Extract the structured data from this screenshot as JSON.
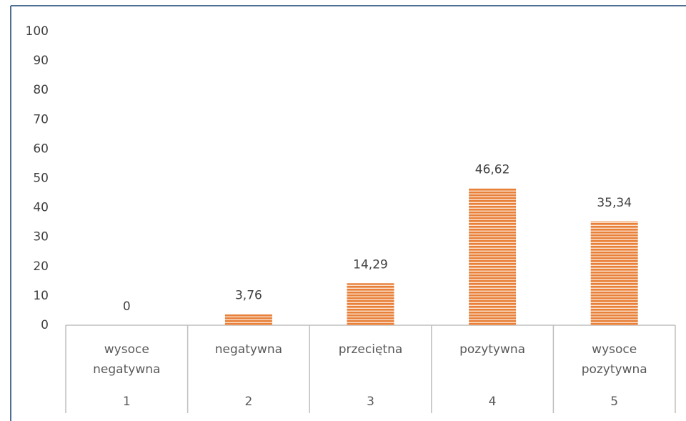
{
  "chart_data": {
    "type": "bar",
    "categories": [
      "wysoce negatywna",
      "negatywna",
      "przeciętna",
      "pozytywna",
      "wysoce pozytywna"
    ],
    "subcategories": [
      "1",
      "2",
      "3",
      "4",
      "5"
    ],
    "values": [
      0,
      3.76,
      14.29,
      46.62,
      35.34
    ],
    "value_labels": [
      "0",
      "3,76",
      "14,29",
      "46,62",
      "35,34"
    ],
    "color": "#e8803a",
    "ylim": [
      0,
      100
    ],
    "yticks": [
      0,
      10,
      20,
      30,
      40,
      50,
      60,
      70,
      80,
      90,
      100
    ],
    "grid": false
  }
}
